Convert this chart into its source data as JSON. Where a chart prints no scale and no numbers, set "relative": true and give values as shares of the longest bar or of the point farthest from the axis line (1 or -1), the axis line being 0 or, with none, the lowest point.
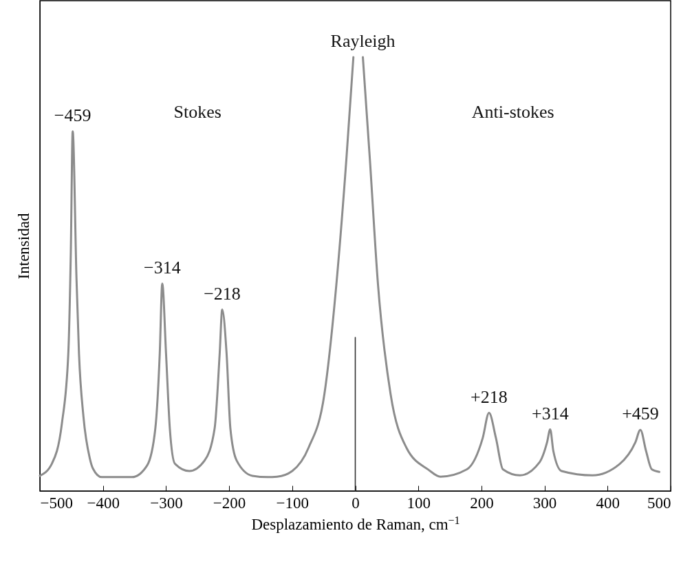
{
  "chart_data": {
    "type": "line",
    "relative": true,
    "xlabel": "Desplazamiento de Raman, cm$^{−1}$",
    "ylabel": "Intensidad",
    "xlim": [
      -500,
      500
    ],
    "xticks": [
      -500,
      -400,
      -300,
      -200,
      -100,
      0,
      100,
      200,
      300,
      400,
      500
    ],
    "marker": "none",
    "line_style": "solid",
    "series": [
      {
        "color": "#8c8c8c",
        "x": [
          -500,
          -481,
          -465,
          -455,
          -451,
          -448,
          -442,
          -438,
          -431,
          -421,
          -416,
          -402,
          -354,
          -330,
          -317,
          -310,
          -306,
          -300,
          -294,
          -286,
          -263,
          -239,
          -223,
          -215,
          -211,
          -204,
          -198,
          -188,
          -163,
          -139,
          -124,
          -100,
          -74,
          -49,
          -30,
          -14,
          -3,
          5,
          12,
          23,
          36,
          56,
          81,
          116,
          135,
          177,
          202,
          212,
          223,
          234,
          261,
          292,
          304,
          309,
          314,
          327,
          376,
          419,
          444,
          452,
          461,
          470,
          482
        ],
        "values": [
          0.035,
          0.063,
          0.157,
          0.316,
          0.55,
          0.829,
          0.49,
          0.316,
          0.172,
          0.076,
          0.052,
          0.032,
          0.032,
          0.059,
          0.144,
          0.316,
          0.478,
          0.316,
          0.144,
          0.063,
          0.046,
          0.07,
          0.144,
          0.316,
          0.418,
          0.316,
          0.144,
          0.07,
          0.035,
          0.032,
          0.033,
          0.046,
          0.1,
          0.223,
          0.476,
          0.767,
          1,
          null,
          1,
          0.767,
          0.476,
          0.223,
          0.1,
          0.049,
          0.033,
          0.05,
          0.122,
          0.18,
          0.122,
          0.05,
          0.036,
          0.066,
          0.112,
          0.142,
          0.092,
          0.046,
          0.036,
          0.062,
          0.112,
          0.141,
          0.092,
          0.05,
          0.044
        ]
      },
      {
        "color": "#333333",
        "x": [
          0,
          0
        ],
        "values": [
          0,
          0.354
        ]
      }
    ],
    "annotations": [
      {
        "text": "−459",
        "x": -448,
        "y": 0.829
      },
      "Stokes",
      {
        "text": "Rayleigh",
        "x": 12,
        "y": 1
      },
      "Anti-stokes",
      {
        "text": "−314",
        "x": -306,
        "y": 0.478
      },
      {
        "text": "−218",
        "x": -211,
        "y": 0.418
      },
      {
        "text": "+218",
        "x": 212,
        "y": 0.18
      },
      {
        "text": "+314",
        "x": 309,
        "y": 0.142
      },
      {
        "text": "+459",
        "x": 452,
        "y": 0.141
      }
    ]
  }
}
